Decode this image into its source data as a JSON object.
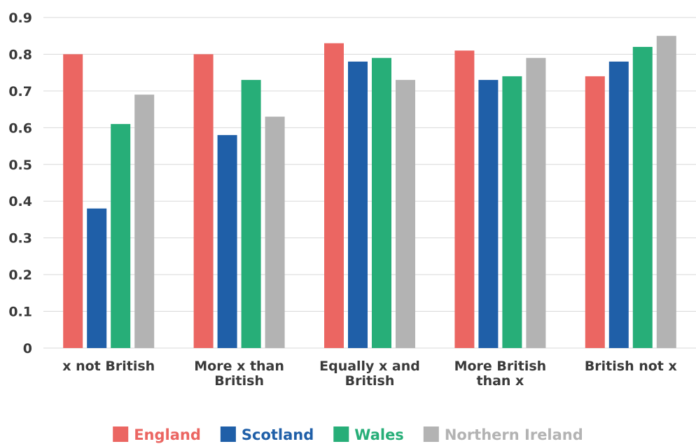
{
  "chart_data": {
    "type": "bar",
    "title": "",
    "xlabel": "",
    "ylabel": "",
    "ylim": [
      0,
      0.9
    ],
    "yticks": [
      "0",
      "0.1",
      "0.2",
      "0.3",
      "0.4",
      "0.5",
      "0.6",
      "0.7",
      "0.8",
      "0.9"
    ],
    "grid": true,
    "legend_position": "bottom",
    "categories": [
      [
        "x not British"
      ],
      [
        "More x than",
        "British"
      ],
      [
        "Equally x and",
        "British"
      ],
      [
        "More British",
        "than x"
      ],
      [
        "British not x"
      ]
    ],
    "series": [
      {
        "name": "England",
        "color": "#eb6662",
        "values": [
          0.8,
          0.8,
          0.83,
          0.81,
          0.74
        ]
      },
      {
        "name": "Scotland",
        "color": "#1f5fa8",
        "values": [
          0.38,
          0.58,
          0.78,
          0.73,
          0.78
        ]
      },
      {
        "name": "Wales",
        "color": "#27ae78",
        "values": [
          0.61,
          0.73,
          0.79,
          0.74,
          0.82
        ]
      },
      {
        "name": "Northern Ireland",
        "color": "#b3b3b3",
        "values": [
          0.69,
          0.63,
          0.73,
          0.79,
          0.85
        ]
      }
    ]
  }
}
